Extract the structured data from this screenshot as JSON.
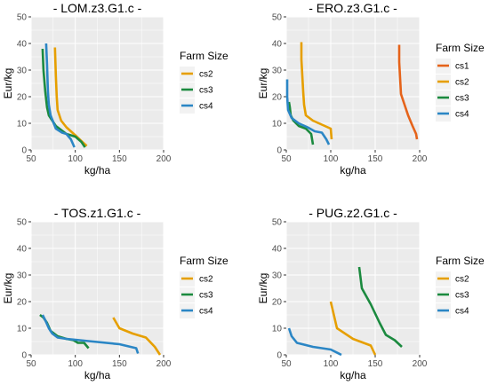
{
  "chart_data": [
    {
      "type": "line",
      "title": "- LOM.z3.G1.c -",
      "xlabel": "kg/ha",
      "ylabel": "Eur/kg",
      "xlim": [
        50,
        200
      ],
      "ylim": [
        0,
        50
      ],
      "x_ticks": [
        50,
        100,
        150,
        200
      ],
      "y_ticks": [
        0,
        10,
        20,
        30,
        40,
        50
      ],
      "grid": true,
      "legend": {
        "title": "Farm Size",
        "position": "right",
        "entries": [
          "cs2",
          "cs3",
          "cs4"
        ]
      },
      "series": [
        {
          "name": "cs2",
          "color": "#E69F00",
          "points": [
            [
              77,
              38.5
            ],
            [
              78,
              28
            ],
            [
              79,
              20
            ],
            [
              80,
              15
            ],
            [
              84,
              11
            ],
            [
              90,
              8.5
            ],
            [
              100,
              5.5
            ],
            [
              108,
              3
            ],
            [
              113,
              1.5
            ]
          ]
        },
        {
          "name": "cs3",
          "color": "#1B8A3F",
          "points": [
            [
              63,
              38
            ],
            [
              64,
              30
            ],
            [
              66,
              22
            ],
            [
              68,
              16
            ],
            [
              70,
              13
            ],
            [
              78,
              9
            ],
            [
              90,
              6
            ],
            [
              100,
              5
            ],
            [
              107,
              3
            ],
            [
              111,
              1
            ]
          ]
        },
        {
          "name": "cs4",
          "color": "#2B86C5",
          "points": [
            [
              67,
              40
            ],
            [
              68,
              32
            ],
            [
              69,
              22
            ],
            [
              70,
              17
            ],
            [
              72,
              13
            ],
            [
              78,
              8
            ],
            [
              85,
              6.5
            ],
            [
              90,
              6
            ],
            [
              95,
              4
            ],
            [
              99,
              1
            ]
          ]
        }
      ]
    },
    {
      "type": "line",
      "title": "- ERO.z3.G1.c -",
      "xlabel": "kg/ha",
      "ylabel": "Eur/kg",
      "xlim": [
        50,
        200
      ],
      "ylim": [
        0,
        50
      ],
      "x_ticks": [
        50,
        100,
        150,
        200
      ],
      "y_ticks": [
        0,
        10,
        20,
        30,
        40,
        50
      ],
      "grid": true,
      "legend": {
        "title": "Farm Size",
        "position": "right",
        "entries": [
          "cs1",
          "cs2",
          "cs3",
          "cs4"
        ]
      },
      "series": [
        {
          "name": "cs1",
          "color": "#E5631A",
          "points": [
            [
              177,
              39.5
            ],
            [
              177,
              33
            ],
            [
              178,
              27
            ],
            [
              179,
              21
            ],
            [
              183,
              17
            ],
            [
              187,
              13
            ],
            [
              192,
              9
            ],
            [
              196,
              6
            ],
            [
              197,
              4
            ]
          ]
        },
        {
          "name": "cs2",
          "color": "#E69F00",
          "points": [
            [
              67,
              40.5
            ],
            [
              67,
              34
            ],
            [
              68,
              28
            ],
            [
              69,
              22
            ],
            [
              70,
              17
            ],
            [
              72,
              13
            ],
            [
              80,
              11
            ],
            [
              90,
              9.5
            ],
            [
              100,
              8
            ],
            [
              101,
              4
            ]
          ]
        },
        {
          "name": "cs3",
          "color": "#1B8A3F",
          "points": [
            [
              53,
              18
            ],
            [
              54,
              16
            ],
            [
              55,
              13
            ],
            [
              58,
              11
            ],
            [
              64,
              9
            ],
            [
              72,
              8
            ],
            [
              78,
              6
            ],
            [
              80,
              2
            ]
          ]
        },
        {
          "name": "cs4",
          "color": "#2B86C5",
          "points": [
            [
              51,
              26.5
            ],
            [
              51,
              20
            ],
            [
              52,
              15
            ],
            [
              56,
              12
            ],
            [
              64,
              10
            ],
            [
              74,
              8.5
            ],
            [
              82,
              7
            ],
            [
              90,
              6.5
            ],
            [
              95,
              4
            ],
            [
              98,
              2
            ]
          ]
        }
      ]
    },
    {
      "type": "line",
      "title": "- TOS.z1.G1.c -",
      "xlabel": "kg/ha",
      "ylabel": "Eur/kg",
      "xlim": [
        50,
        200
      ],
      "ylim": [
        0,
        50
      ],
      "x_ticks": [
        50,
        100,
        150,
        200
      ],
      "y_ticks": [
        0,
        10,
        20,
        30,
        40,
        50
      ],
      "grid": true,
      "legend": {
        "title": "Farm Size",
        "position": "right",
        "entries": [
          "cs2",
          "cs3",
          "cs4"
        ]
      },
      "series": [
        {
          "name": "cs2",
          "color": "#E69F00",
          "points": [
            [
              143,
              14
            ],
            [
              150,
              10
            ],
            [
              165,
              8
            ],
            [
              180,
              6.5
            ],
            [
              190,
              3
            ],
            [
              196,
              0
            ]
          ]
        },
        {
          "name": "cs3",
          "color": "#1B8A3F",
          "points": [
            [
              60,
              15
            ],
            [
              64,
              14
            ],
            [
              68,
              12
            ],
            [
              72,
              9
            ],
            [
              80,
              7
            ],
            [
              90,
              6
            ],
            [
              98,
              5.5
            ],
            [
              103,
              4.5
            ],
            [
              110,
              4.5
            ],
            [
              115,
              2.5
            ]
          ]
        },
        {
          "name": "cs4",
          "color": "#2B86C5",
          "points": [
            [
              63,
              15
            ],
            [
              66,
              13
            ],
            [
              70,
              10
            ],
            [
              74,
              8
            ],
            [
              80,
              6.5
            ],
            [
              90,
              6
            ],
            [
              120,
              5
            ],
            [
              150,
              4
            ],
            [
              169,
              2.5
            ],
            [
              171,
              0.5
            ]
          ]
        }
      ]
    },
    {
      "type": "line",
      "title": "- PUG.z2.G1.c -",
      "xlabel": "kg/ha",
      "ylabel": "Eur/kg",
      "xlim": [
        50,
        200
      ],
      "ylim": [
        0,
        50
      ],
      "x_ticks": [
        50,
        100,
        150,
        200
      ],
      "y_ticks": [
        0,
        10,
        20,
        30,
        40,
        50
      ],
      "grid": true,
      "legend": {
        "title": "Farm Size",
        "position": "right",
        "entries": [
          "cs2",
          "cs3",
          "cs4"
        ]
      },
      "series": [
        {
          "name": "cs2",
          "color": "#E69F00",
          "points": [
            [
              100,
              20
            ],
            [
              107,
              10
            ],
            [
              125,
              6
            ],
            [
              145,
              3.5
            ],
            [
              150,
              0
            ]
          ]
        },
        {
          "name": "cs3",
          "color": "#1B8A3F",
          "points": [
            [
              132,
              33
            ],
            [
              135,
              25
            ],
            [
              145,
              19
            ],
            [
              155,
              12
            ],
            [
              162,
              7.5
            ],
            [
              172,
              5.5
            ],
            [
              180,
              3
            ]
          ]
        },
        {
          "name": "cs4",
          "color": "#2B86C5",
          "points": [
            [
              53,
              10
            ],
            [
              56,
              7
            ],
            [
              62,
              4.5
            ],
            [
              80,
              3
            ],
            [
              100,
              2
            ],
            [
              112,
              0
            ]
          ]
        }
      ]
    }
  ]
}
